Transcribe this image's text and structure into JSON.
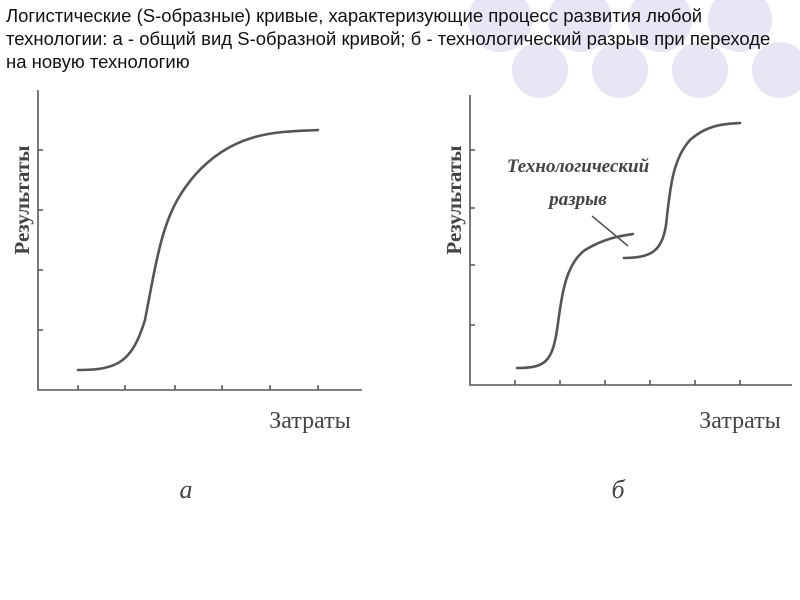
{
  "header": {
    "title": "Логистические (S-образные) кривые, характеризующие процесс развития любой технологии: а - общий вид S-образной кривой; б - технологический разрыв при переходе на новую технологию"
  },
  "panels": [
    {
      "y_label": "Результаты",
      "x_label": "Затраты",
      "caption": "а"
    },
    {
      "y_label": "Результаты",
      "x_label": "Затраты",
      "caption": "б",
      "annotation": [
        "Технологический",
        "разрыв"
      ]
    }
  ]
}
